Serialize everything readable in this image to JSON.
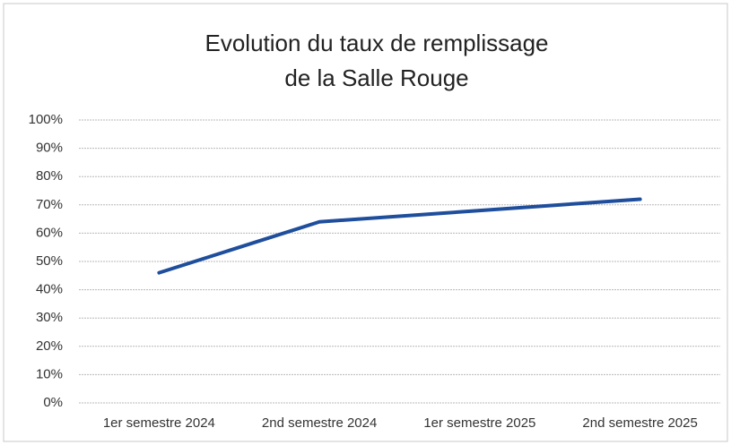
{
  "chart_data": {
    "type": "line",
    "title": [
      "Evolution du taux de remplissage",
      "de la Salle Rouge"
    ],
    "categories": [
      "1er semestre 2024",
      "2nd semestre 2024",
      "1er semestre 2025",
      "2nd semestre 2025"
    ],
    "series": [
      {
        "name": "Taux de remplissage",
        "color": "#1f4e9c",
        "values": [
          46,
          64,
          68,
          72
        ]
      }
    ],
    "ylim": [
      0,
      100
    ],
    "yticks": [
      {
        "value": 0,
        "label": "0%"
      },
      {
        "value": 10,
        "label": "10%"
      },
      {
        "value": 20,
        "label": "20%"
      },
      {
        "value": 30,
        "label": "30%"
      },
      {
        "value": 40,
        "label": "40%"
      },
      {
        "value": 50,
        "label": "50%"
      },
      {
        "value": 60,
        "label": "60%"
      },
      {
        "value": 70,
        "label": "70%"
      },
      {
        "value": 80,
        "label": "80%"
      },
      {
        "value": 90,
        "label": "90%"
      },
      {
        "value": 100,
        "label": "100%"
      }
    ],
    "grid": true
  }
}
